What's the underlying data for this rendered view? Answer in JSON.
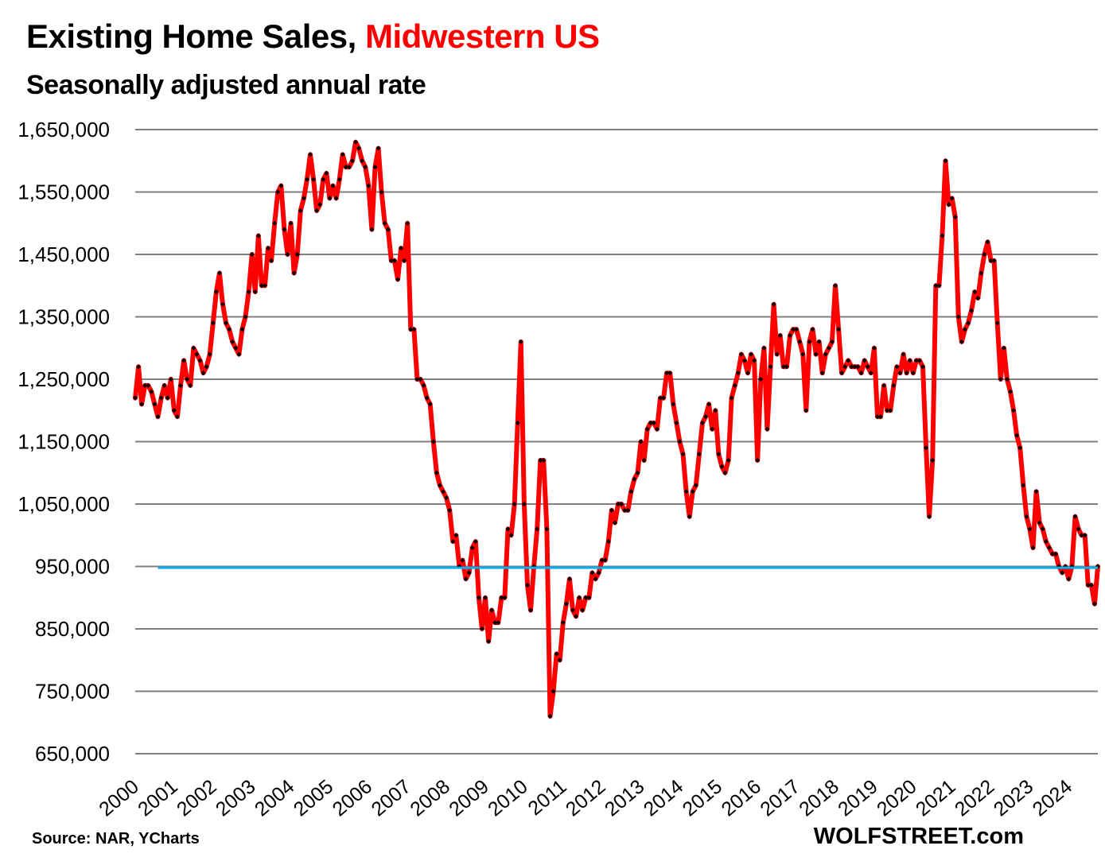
{
  "chart_data": {
    "type": "line",
    "title": "Existing Home Sales, ",
    "title_highlight": "Midwestern US",
    "subtitle": "Seasonally adjusted annual rate",
    "source": "Source: NAR, YCharts",
    "brand": "WOLFSTREET.com",
    "xlabel": "",
    "ylabel": "",
    "ylim": [
      650000,
      1650000
    ],
    "yticks": [
      "1,650,000",
      "1,550,000",
      "1,450,000",
      "1,350,000",
      "1,250,000",
      "1,150,000",
      "1,050,000",
      "950,000",
      "850,000",
      "750,000",
      "650,000"
    ],
    "ytick_values": [
      1650000,
      1550000,
      1450000,
      1350000,
      1250000,
      1150000,
      1050000,
      950000,
      850000,
      750000,
      650000
    ],
    "xticks": [
      "2000",
      "2001",
      "2002",
      "2003",
      "2004",
      "2005",
      "2006",
      "2007",
      "2008",
      "2009",
      "2010",
      "2011",
      "2012",
      "2013",
      "2014",
      "2015",
      "2016",
      "2017",
      "2018",
      "2019",
      "2020",
      "2021",
      "2022",
      "2023",
      "2024"
    ],
    "grid": true,
    "start": "2000-01",
    "frequency": "monthly",
    "colors": {
      "series": "#ff0000",
      "marker": "#000000",
      "reference": "#00b0f0",
      "grid": "#808080",
      "highlight": "#ff0000"
    },
    "reference_line": {
      "value": 948000,
      "from": "2000-08",
      "to": "2024-10"
    },
    "series": [
      {
        "name": "Existing Home Sales, Midwest (SAAR)",
        "values": [
          1220000,
          1270000,
          1210000,
          1240000,
          1240000,
          1230000,
          1210000,
          1190000,
          1220000,
          1240000,
          1220000,
          1250000,
          1200000,
          1190000,
          1240000,
          1280000,
          1250000,
          1240000,
          1300000,
          1290000,
          1280000,
          1260000,
          1270000,
          1290000,
          1340000,
          1390000,
          1420000,
          1370000,
          1340000,
          1330000,
          1310000,
          1300000,
          1290000,
          1330000,
          1350000,
          1390000,
          1450000,
          1390000,
          1480000,
          1400000,
          1400000,
          1460000,
          1440000,
          1500000,
          1550000,
          1560000,
          1490000,
          1450000,
          1500000,
          1420000,
          1450000,
          1520000,
          1540000,
          1570000,
          1610000,
          1570000,
          1520000,
          1530000,
          1570000,
          1580000,
          1540000,
          1560000,
          1540000,
          1570000,
          1610000,
          1590000,
          1590000,
          1600000,
          1630000,
          1620000,
          1600000,
          1590000,
          1560000,
          1490000,
          1590000,
          1620000,
          1550000,
          1500000,
          1490000,
          1440000,
          1440000,
          1410000,
          1460000,
          1440000,
          1500000,
          1330000,
          1330000,
          1250000,
          1250000,
          1240000,
          1220000,
          1210000,
          1150000,
          1100000,
          1080000,
          1070000,
          1060000,
          1040000,
          990000,
          1000000,
          950000,
          960000,
          930000,
          940000,
          980000,
          990000,
          900000,
          850000,
          900000,
          830000,
          880000,
          860000,
          860000,
          900000,
          900000,
          1010000,
          1000000,
          1050000,
          1180000,
          1310000,
          1050000,
          920000,
          880000,
          950000,
          1010000,
          1120000,
          1120000,
          1010000,
          710000,
          750000,
          810000,
          800000,
          860000,
          890000,
          930000,
          880000,
          870000,
          900000,
          880000,
          900000,
          900000,
          940000,
          930000,
          940000,
          960000,
          960000,
          990000,
          1040000,
          1020000,
          1050000,
          1050000,
          1040000,
          1040000,
          1070000,
          1090000,
          1100000,
          1150000,
          1120000,
          1170000,
          1180000,
          1180000,
          1170000,
          1220000,
          1220000,
          1260000,
          1260000,
          1210000,
          1180000,
          1150000,
          1130000,
          1070000,
          1030000,
          1070000,
          1080000,
          1130000,
          1180000,
          1190000,
          1210000,
          1170000,
          1200000,
          1130000,
          1110000,
          1100000,
          1120000,
          1220000,
          1240000,
          1260000,
          1290000,
          1280000,
          1260000,
          1290000,
          1280000,
          1120000,
          1250000,
          1300000,
          1170000,
          1270000,
          1370000,
          1290000,
          1320000,
          1270000,
          1270000,
          1320000,
          1330000,
          1330000,
          1310000,
          1290000,
          1200000,
          1310000,
          1330000,
          1290000,
          1310000,
          1260000,
          1290000,
          1300000,
          1310000,
          1400000,
          1330000,
          1260000,
          1270000,
          1280000,
          1270000,
          1270000,
          1270000,
          1260000,
          1280000,
          1270000,
          1260000,
          1300000,
          1190000,
          1190000,
          1240000,
          1200000,
          1200000,
          1240000,
          1270000,
          1260000,
          1290000,
          1260000,
          1280000,
          1260000,
          1280000,
          1280000,
          1270000,
          1140000,
          1030000,
          1120000,
          1400000,
          1400000,
          1480000,
          1600000,
          1530000,
          1540000,
          1510000,
          1350000,
          1310000,
          1330000,
          1340000,
          1360000,
          1390000,
          1380000,
          1420000,
          1450000,
          1470000,
          1440000,
          1440000,
          1340000,
          1250000,
          1300000,
          1250000,
          1230000,
          1200000,
          1160000,
          1140000,
          1080000,
          1030000,
          1010000,
          980000,
          1070000,
          1020000,
          1010000,
          990000,
          980000,
          970000,
          970000,
          950000,
          940000,
          950000,
          930000,
          950000,
          1030000,
          1010000,
          1000000,
          1000000,
          920000,
          920000,
          890000,
          950000
        ]
      }
    ]
  }
}
